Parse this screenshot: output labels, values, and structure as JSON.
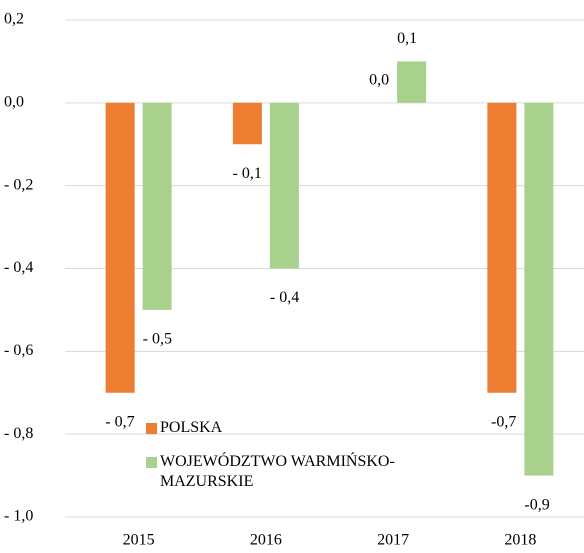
{
  "chart_data": {
    "type": "bar",
    "categories": [
      "2015",
      "2016",
      "2017",
      "2018"
    ],
    "series": [
      {
        "name": "POLSKA",
        "color": "#ed7d31",
        "values": [
          -0.7,
          -0.1,
          0.0,
          -0.7
        ],
        "value_labels": [
          "- 0,7",
          "- 0,1",
          "0,0",
          "-0,7"
        ]
      },
      {
        "name": "WOJEWÓDZTWO WARMIŃSKO-MAZURSKIE",
        "color": "#a9d18e",
        "values": [
          -0.5,
          -0.4,
          0.1,
          -0.9
        ],
        "value_labels": [
          "- 0,5",
          "- 0,4",
          "0,1",
          "-0,9"
        ]
      }
    ],
    "ylim": [
      -1.0,
      0.2
    ],
    "yticks": [
      {
        "value": 0.2,
        "label": "0,2"
      },
      {
        "value": 0.0,
        "label": "0,0"
      },
      {
        "value": -0.2,
        "label": "- 0,2"
      },
      {
        "value": -0.4,
        "label": "- 0,4"
      },
      {
        "value": -0.6,
        "label": "- 0,6"
      },
      {
        "value": -0.8,
        "label": "- 0,8"
      },
      {
        "value": -1.0,
        "label": "- 1,0"
      }
    ],
    "grid": true,
    "legend": "bottom"
  }
}
